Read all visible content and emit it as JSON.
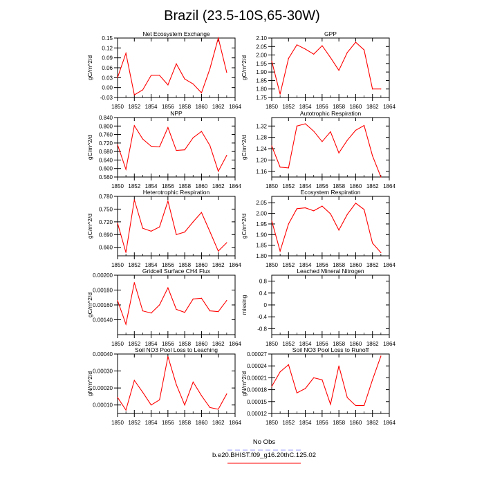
{
  "figure": {
    "title": "Brazil (23.5-10S,65-30W)",
    "legend": {
      "entries": [
        {
          "label": "No Obs",
          "color": "#9999ff",
          "dashed": true
        },
        {
          "label": "b.e20.BHIST.f09_g16.20thC.125.02",
          "color": "#ff0000",
          "dashed": false
        }
      ]
    }
  },
  "chart_data": [
    {
      "type": "line",
      "title": "Net Ecosystem Exchange",
      "ylabel": "gC/m^2/d",
      "xlim": [
        1850,
        1864
      ],
      "ylim": [
        -0.03,
        0.15
      ],
      "xticks": [
        1850,
        1852,
        1854,
        1856,
        1858,
        1860,
        1862,
        1864
      ],
      "ytick_labels": [
        "-0.03",
        "0.00",
        "0.03",
        "0.06",
        "0.09",
        "0.12",
        "0.15"
      ],
      "x": [
        1850,
        1851,
        1852,
        1853,
        1854,
        1855,
        1856,
        1857,
        1858,
        1859,
        1860,
        1861,
        1862,
        1863
      ],
      "series": [
        {
          "color": "#ff0000",
          "values": [
            0.03,
            0.104,
            -0.022,
            -0.007,
            0.037,
            0.037,
            0.008,
            0.072,
            0.026,
            0.011,
            -0.016,
            0.057,
            0.15,
            0.046
          ]
        }
      ]
    },
    {
      "type": "line",
      "title": "GPP",
      "ylabel": "gC/m^2/d",
      "xlim": [
        1850,
        1864
      ],
      "ylim": [
        1.75,
        2.1
      ],
      "xticks": [
        1850,
        1852,
        1854,
        1856,
        1858,
        1860,
        1862,
        1864
      ],
      "ytick_labels": [
        "1.75",
        "1.80",
        "1.85",
        "1.90",
        "1.95",
        "2.00",
        "2.05",
        "2.10"
      ],
      "x": [
        1850,
        1851,
        1852,
        1853,
        1854,
        1855,
        1856,
        1857,
        1858,
        1859,
        1860,
        1861,
        1862,
        1863
      ],
      "series": [
        {
          "color": "#ff0000",
          "values": [
            1.965,
            1.77,
            1.98,
            2.06,
            2.035,
            2.005,
            2.055,
            1.985,
            1.91,
            2.015,
            2.075,
            2.03,
            1.8,
            1.8
          ]
        }
      ]
    },
    {
      "type": "line",
      "title": "NPP",
      "ylabel": "gC/m^2/d",
      "xlim": [
        1850,
        1864
      ],
      "ylim": [
        0.56,
        0.84
      ],
      "xticks": [
        1850,
        1852,
        1854,
        1856,
        1858,
        1860,
        1862,
        1864
      ],
      "ytick_labels": [
        "0.560",
        "0.600",
        "0.640",
        "0.680",
        "0.720",
        "0.760",
        "0.800",
        "0.840"
      ],
      "x": [
        1850,
        1851,
        1852,
        1853,
        1854,
        1855,
        1856,
        1857,
        1858,
        1859,
        1860,
        1861,
        1862,
        1863
      ],
      "series": [
        {
          "color": "#ff0000",
          "values": [
            0.712,
            0.596,
            0.802,
            0.739,
            0.705,
            0.702,
            0.793,
            0.685,
            0.688,
            0.745,
            0.775,
            0.708,
            0.587,
            0.662
          ]
        }
      ]
    },
    {
      "type": "line",
      "title": "Autotrophic Respiration",
      "ylabel": "gC/m^2/d",
      "xlim": [
        1850,
        1864
      ],
      "ylim": [
        1.14,
        1.35
      ],
      "xticks": [
        1850,
        1852,
        1854,
        1856,
        1858,
        1860,
        1862,
        1864
      ],
      "ytick_labels": [
        "1.16",
        "1.20",
        "1.24",
        "1.28",
        "1.32"
      ],
      "yticks": [
        1.16,
        1.2,
        1.24,
        1.28,
        1.32
      ],
      "x": [
        1850,
        1851,
        1852,
        1853,
        1854,
        1855,
        1856,
        1857,
        1858,
        1859,
        1860,
        1861,
        1862,
        1863
      ],
      "series": [
        {
          "color": "#ff0000",
          "values": [
            1.25,
            1.175,
            1.172,
            1.32,
            1.328,
            1.302,
            1.265,
            1.3,
            1.225,
            1.27,
            1.305,
            1.322,
            1.215,
            1.14
          ]
        }
      ]
    },
    {
      "type": "line",
      "title": "Heterotrophic Respiration",
      "ylabel": "gC/m^2/d",
      "xlim": [
        1850,
        1864
      ],
      "ylim": [
        0.64,
        0.78
      ],
      "xticks": [
        1850,
        1852,
        1854,
        1856,
        1858,
        1860,
        1862,
        1864
      ],
      "ytick_labels": [
        "0.660",
        "0.690",
        "0.720",
        "0.750",
        "0.780"
      ],
      "yticks": [
        0.66,
        0.69,
        0.72,
        0.75,
        0.78
      ],
      "x": [
        1850,
        1851,
        1852,
        1853,
        1854,
        1855,
        1856,
        1857,
        1858,
        1859,
        1860,
        1861,
        1862,
        1863
      ],
      "series": [
        {
          "color": "#ff0000",
          "values": [
            0.717,
            0.648,
            0.772,
            0.705,
            0.698,
            0.708,
            0.769,
            0.69,
            0.696,
            0.72,
            0.742,
            0.697,
            0.651,
            0.671
          ]
        }
      ]
    },
    {
      "type": "line",
      "title": "Ecosystem Respiration",
      "ylabel": "gC/m^2/d",
      "xlim": [
        1850,
        1864
      ],
      "ylim": [
        1.8,
        2.08
      ],
      "xticks": [
        1850,
        1852,
        1854,
        1856,
        1858,
        1860,
        1862,
        1864
      ],
      "ytick_labels": [
        "1.80",
        "1.85",
        "1.90",
        "1.95",
        "2.00",
        "2.05"
      ],
      "yticks": [
        1.8,
        1.85,
        1.9,
        1.95,
        2.0,
        2.05
      ],
      "x": [
        1850,
        1851,
        1852,
        1853,
        1854,
        1855,
        1856,
        1857,
        1858,
        1859,
        1860,
        1861,
        1862,
        1863
      ],
      "series": [
        {
          "color": "#ff0000",
          "values": [
            1.965,
            1.822,
            1.95,
            2.022,
            2.026,
            2.012,
            2.034,
            1.998,
            1.921,
            1.995,
            2.048,
            2.018,
            1.86,
            1.815
          ]
        }
      ]
    },
    {
      "type": "line",
      "title": "Gridcell Surface CH4 Flux",
      "ylabel": "gC/m^2/d",
      "xlim": [
        1850,
        1864
      ],
      "ylim": [
        0.0012,
        0.002
      ],
      "xticks": [
        1850,
        1852,
        1854,
        1856,
        1858,
        1860,
        1862,
        1864
      ],
      "ytick_labels": [
        "0.00140",
        "0.00160",
        "0.00180",
        "0.00200"
      ],
      "yticks": [
        0.0014,
        0.0016,
        0.0018,
        0.002
      ],
      "x": [
        1850,
        1851,
        1852,
        1853,
        1854,
        1855,
        1856,
        1857,
        1858,
        1859,
        1860,
        1861,
        1862,
        1863
      ],
      "series": [
        {
          "color": "#ff0000",
          "values": [
            0.00166,
            0.00134,
            0.0019,
            0.00152,
            0.00149,
            0.0016,
            0.00183,
            0.00154,
            0.0015,
            0.00168,
            0.00169,
            0.00152,
            0.00151,
            0.00166
          ]
        }
      ]
    },
    {
      "type": "line",
      "title": "Leached Mineral Nitrogen",
      "ylabel": "missing",
      "xlim": [
        1850,
        1864
      ],
      "ylim": [
        -1.0,
        1.0
      ],
      "xticks": [
        1850,
        1852,
        1854,
        1856,
        1858,
        1860,
        1862,
        1864
      ],
      "ytick_labels": [
        "-0.8",
        "-0.4",
        "0",
        "0.4",
        "0.8"
      ],
      "yticks": [
        -0.8,
        -0.4,
        0,
        0.4,
        0.8
      ],
      "x": [],
      "series": []
    },
    {
      "type": "line",
      "title": "Soil NO3 Pool Loss to Leaching",
      "ylabel": "gN/m^2/d",
      "xlim": [
        1850,
        1864
      ],
      "ylim": [
        5e-05,
        0.0004
      ],
      "xticks": [
        1850,
        1852,
        1854,
        1856,
        1858,
        1860,
        1862,
        1864
      ],
      "ytick_labels": [
        "0.00010",
        "0.00020",
        "0.00030",
        "0.00040"
      ],
      "yticks": [
        0.0001,
        0.0002,
        0.0003,
        0.0004
      ],
      "x": [
        1850,
        1851,
        1852,
        1853,
        1854,
        1855,
        1856,
        1857,
        1858,
        1859,
        1860,
        1861,
        1862,
        1863
      ],
      "series": [
        {
          "color": "#ff0000",
          "values": [
            0.000145,
            7e-05,
            0.000245,
            0.000175,
            0.0001,
            0.00013,
            0.000385,
            0.00022,
            0.0001,
            0.000235,
            0.000155,
            8.5e-05,
            7.5e-05,
            0.000165
          ]
        }
      ]
    },
    {
      "type": "line",
      "title": "Soil NO3 Pool Loss to Runoff",
      "ylabel": "gN/m^2/d",
      "xlim": [
        1850,
        1864
      ],
      "ylim": [
        0.00012,
        0.00027
      ],
      "xticks": [
        1850,
        1852,
        1854,
        1856,
        1858,
        1860,
        1862,
        1864
      ],
      "ytick_labels": [
        "0.00012",
        "0.00015",
        "0.00018",
        "0.00021",
        "0.00024",
        "0.00027"
      ],
      "yticks": [
        0.00012,
        0.00015,
        0.00018,
        0.00021,
        0.00024,
        0.00027
      ],
      "x": [
        1850,
        1851,
        1852,
        1853,
        1854,
        1855,
        1856,
        1857,
        1858,
        1859,
        1860,
        1861,
        1862,
        1863
      ],
      "series": [
        {
          "color": "#ff0000",
          "values": [
            0.000188,
            0.000225,
            0.000243,
            0.000172,
            0.000183,
            0.00021,
            0.000205,
            0.000143,
            0.00024,
            0.00016,
            0.00014,
            0.00014,
            0.000205,
            0.000265
          ]
        }
      ]
    }
  ]
}
